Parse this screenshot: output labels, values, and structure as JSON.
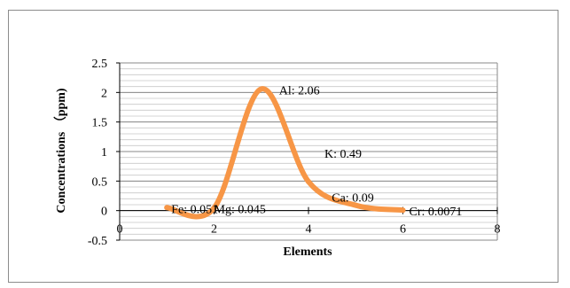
{
  "chart_data": {
    "type": "line",
    "title": "",
    "xlabel": "Elements",
    "ylabel": "Concentrations （ppm)",
    "xlim": [
      0,
      8
    ],
    "ylim": [
      -0.5,
      2.5
    ],
    "x_ticks": [
      0,
      2,
      4,
      6,
      8
    ],
    "y_ticks": [
      -0.5,
      0,
      0.5,
      1,
      1.5,
      2,
      2.5
    ],
    "x_tick_labels": [
      "0",
      "2",
      "4",
      "6",
      "8"
    ],
    "y_tick_labels": [
      "-0.5",
      "0",
      "0.5",
      "1",
      "1.5",
      "2",
      "2.5"
    ],
    "grid": "horizontal",
    "smooth": true,
    "series_color": "#f79646",
    "series": [
      {
        "values": [
          {
            "x": 1,
            "y": 0.051
          },
          {
            "x": 2,
            "y": 0.045
          },
          {
            "x": 3,
            "y": 2.06
          },
          {
            "x": 4,
            "y": 0.49
          },
          {
            "x": 5,
            "y": 0.09
          },
          {
            "x": 6,
            "y": 0.0071
          }
        ]
      }
    ],
    "data_labels": [
      "Fe: 0.051",
      "Mg: 0.045",
      "Al: 2.06",
      "K: 0.49",
      "Ca: 0.09",
      "Cr: 0.0071"
    ]
  }
}
